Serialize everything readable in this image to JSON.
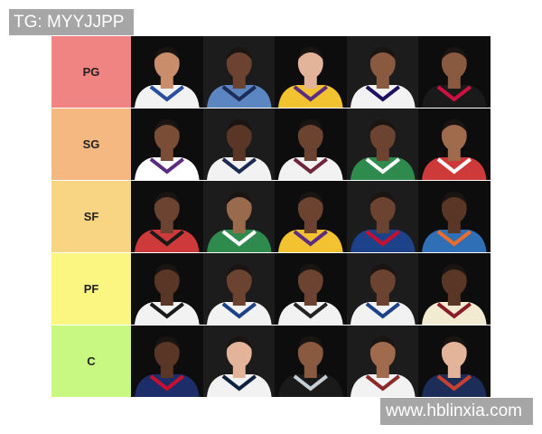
{
  "watermarks": {
    "top": "TG: MYYJJPP",
    "bottom": "www.hblinxia.com"
  },
  "tiers": [
    {
      "label": "PG",
      "color": "#f08482",
      "players": [
        {
          "skin": "#c98d6b",
          "jersey": "#f2f2f2",
          "trim": "#2a4fa0"
        },
        {
          "skin": "#6b4330",
          "jersey": "#5b86c2",
          "trim": "#1d2d5a"
        },
        {
          "skin": "#e3b49a",
          "jersey": "#f2c230",
          "trim": "#5a2d82"
        },
        {
          "skin": "#8a5a40",
          "jersey": "#f2f2f2",
          "trim": "#1d1160"
        },
        {
          "skin": "#8a5a40",
          "jersey": "#1a1a1a",
          "trim": "#ce1141"
        }
      ]
    },
    {
      "label": "SG",
      "color": "#f5b880",
      "players": [
        {
          "skin": "#7a4e36",
          "jersey": "#ffffff",
          "trim": "#5a2d82"
        },
        {
          "skin": "#5a3626",
          "jersey": "#f2f2f2",
          "trim": "#1b2a55"
        },
        {
          "skin": "#6b4330",
          "jersey": "#f2f2f2",
          "trim": "#6f263d"
        },
        {
          "skin": "#6b4330",
          "jersey": "#2f8a4e",
          "trim": "#ffffff"
        },
        {
          "skin": "#a06a4c",
          "jersey": "#ce3a3a",
          "trim": "#ffffff"
        }
      ]
    },
    {
      "label": "SF",
      "color": "#f8d582",
      "players": [
        {
          "skin": "#6b4330",
          "jersey": "#ce3a3a",
          "trim": "#1a1a1a"
        },
        {
          "skin": "#9a6a4c",
          "jersey": "#2f8a4e",
          "trim": "#ffffff"
        },
        {
          "skin": "#6b4330",
          "jersey": "#f2c230",
          "trim": "#5a2d82"
        },
        {
          "skin": "#6b4330",
          "jersey": "#1d428a",
          "trim": "#c8102e"
        },
        {
          "skin": "#5a3626",
          "jersey": "#2f6fb5",
          "trim": "#ef6c2a"
        }
      ]
    },
    {
      "label": "PF",
      "color": "#fbf682",
      "players": [
        {
          "skin": "#5a3626",
          "jersey": "#f2f2f2",
          "trim": "#1a1a1a"
        },
        {
          "skin": "#6b4330",
          "jersey": "#f2f2f2",
          "trim": "#1d428a"
        },
        {
          "skin": "#6b4330",
          "jersey": "#f2f2f2",
          "trim": "#222222"
        },
        {
          "skin": "#6b4330",
          "jersey": "#f2f2f2",
          "trim": "#1d428a"
        },
        {
          "skin": "#5a3626",
          "jersey": "#f3ead2",
          "trim": "#8a1c2a"
        }
      ]
    },
    {
      "label": "C",
      "color": "#c9f882",
      "players": [
        {
          "skin": "#5a3626",
          "jersey": "#1d2d6a",
          "trim": "#c8102e"
        },
        {
          "skin": "#e3b49a",
          "jersey": "#f2f2f2",
          "trim": "#0e2240"
        },
        {
          "skin": "#8a5a40",
          "jersey": "#1a1a1a",
          "trim": "#c4ced4"
        },
        {
          "skin": "#a06a4c",
          "jersey": "#f2f2f2",
          "trim": "#8a2a2a"
        },
        {
          "skin": "#e3b49a",
          "jersey": "#1d2d5a",
          "trim": "#c8402e"
        }
      ]
    }
  ]
}
